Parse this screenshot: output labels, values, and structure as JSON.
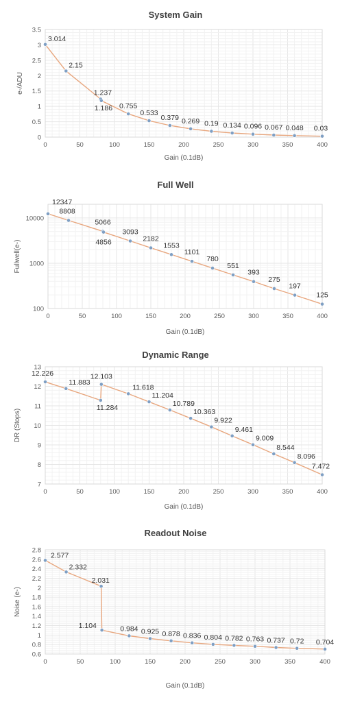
{
  "chart_data": [
    {
      "type": "line",
      "title": "System Gain",
      "xlabel": "Gain (0.1dB)",
      "ylabel": "e-/ADU",
      "xlim": [
        0,
        400
      ],
      "ylim": [
        0,
        3.5
      ],
      "xticks": [
        "0",
        "50",
        "100",
        "150",
        "200",
        "250",
        "300",
        "350",
        "400"
      ],
      "yticks": [
        "0",
        "0.5",
        "1",
        "1.5",
        "2",
        "2.5",
        "3",
        "3.5"
      ],
      "log_scale_y": false,
      "grid": true,
      "line_color": "#e8a77f",
      "marker_color": "#7f9fc3",
      "x": [
        0,
        30,
        80,
        81,
        120,
        150,
        180,
        210,
        240,
        270,
        300,
        330,
        360,
        400
      ],
      "y": [
        3.014,
        2.15,
        1.237,
        1.186,
        0.755,
        0.533,
        0.379,
        0.269,
        0.19,
        0.134,
        0.096,
        0.067,
        0.048,
        0.03
      ],
      "labels": [
        "3.014",
        "2.15",
        "1.237",
        "1.186",
        "0.755",
        "0.533",
        "0.379",
        "0.269",
        "0.19",
        "0.134",
        "0.096",
        "0.067",
        "0.048",
        "0.03"
      ]
    },
    {
      "type": "line",
      "title": "Full Well",
      "xlabel": "Gain (0.1dB)",
      "ylabel": "Fullwell(e-)",
      "xlim": [
        0,
        400
      ],
      "ylim": [
        100,
        20000
      ],
      "xticks": [
        "0",
        "50",
        "100",
        "150",
        "200",
        "250",
        "300",
        "350",
        "400"
      ],
      "yticks": [
        "100",
        "1000",
        "10000"
      ],
      "log_scale_y": true,
      "grid": true,
      "line_color": "#e8a77f",
      "marker_color": "#7f9fc3",
      "x": [
        0,
        30,
        80,
        81,
        120,
        150,
        180,
        210,
        240,
        270,
        300,
        330,
        360,
        400
      ],
      "y": [
        12347,
        8808,
        5066,
        4856,
        3093,
        2182,
        1553,
        1101,
        780,
        551,
        393,
        275,
        197,
        125
      ],
      "labels": [
        "12347",
        "8808",
        "5066",
        "4856",
        "3093",
        "2182",
        "1553",
        "1101",
        "780",
        "551",
        "393",
        "275",
        "197",
        "125"
      ]
    },
    {
      "type": "line",
      "title": "Dynamic Range",
      "xlabel": "Gain (0.1dB)",
      "ylabel": "DR (Stops)",
      "xlim": [
        0,
        400
      ],
      "ylim": [
        7,
        13
      ],
      "xticks": [
        "0",
        "50",
        "100",
        "150",
        "200",
        "250",
        "300",
        "350",
        "400"
      ],
      "yticks": [
        "7",
        "8",
        "9",
        "10",
        "11",
        "12",
        "13"
      ],
      "log_scale_y": false,
      "grid": true,
      "line_color": "#e8a77f",
      "marker_color": "#7f9fc3",
      "x": [
        0,
        30,
        80,
        81,
        120,
        150,
        180,
        210,
        240,
        270,
        300,
        330,
        360,
        400
      ],
      "y": [
        12.226,
        11.883,
        11.284,
        12.103,
        11.618,
        11.204,
        10.789,
        10.363,
        9.922,
        9.461,
        9.009,
        8.544,
        8.096,
        7.472
      ],
      "labels": [
        "12.226",
        "11.883",
        "11.284",
        "12.103",
        "11.618",
        "11.204",
        "10.789",
        "10.363",
        "9.922",
        "9.461",
        "9.009",
        "8.544",
        "8.096",
        "7.472"
      ]
    },
    {
      "type": "line",
      "title": "Readout Noise",
      "xlabel": "Gain (0.1dB)",
      "ylabel": "Noise (e-)",
      "xlim": [
        0,
        400
      ],
      "ylim": [
        0.6,
        2.8
      ],
      "xticks": [
        "0",
        "50",
        "100",
        "150",
        "200",
        "250",
        "300",
        "350",
        "400"
      ],
      "yticks": [
        "0.6",
        "0.8",
        "1",
        "1.2",
        "1.4",
        "1.6",
        "1.8",
        "2",
        "2.2",
        "2.4",
        "2.6",
        "2.8"
      ],
      "log_scale_y": false,
      "grid": true,
      "line_color": "#e8a77f",
      "marker_color": "#7f9fc3",
      "x": [
        0,
        30,
        80,
        81,
        120,
        150,
        180,
        210,
        240,
        270,
        300,
        330,
        360,
        400
      ],
      "y": [
        2.577,
        2.332,
        2.031,
        1.104,
        0.984,
        0.925,
        0.878,
        0.836,
        0.804,
        0.782,
        0.763,
        0.737,
        0.72,
        0.704
      ],
      "labels": [
        "2.577",
        "2.332",
        "2.031",
        "1.104",
        "0.984",
        "0.925",
        "0.878",
        "0.836",
        "0.804",
        "0.782",
        "0.763",
        "0.737",
        "0.72",
        "0.704"
      ]
    }
  ]
}
